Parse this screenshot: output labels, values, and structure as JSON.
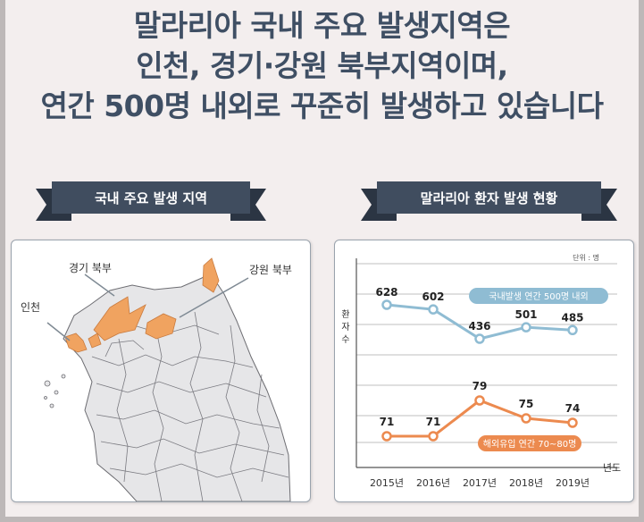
{
  "headline": {
    "line1": "말라리아 국내 주요 발생지역은",
    "line2": "인천, 경기·강원 북부지역이며,",
    "line3": "연간 500명 내외로 꾸준히 발생하고 있습니다"
  },
  "left_panel": {
    "ribbon_title": "국내 주요 발생 지역",
    "labels": {
      "gyeonggi": "경기 북부",
      "gangwon": "강원 북부",
      "incheon": "인천"
    }
  },
  "right_panel": {
    "ribbon_title": "말라리아 환자 발생 현황",
    "unit_note": "단위 : 명",
    "y_label": "환자수",
    "x_axis_label": "년도"
  },
  "colors": {
    "domestic": "#8fbcd3",
    "overseas": "#ec8a4f",
    "highlight_region": "#f0a360"
  },
  "chart_data": {
    "type": "line",
    "categories": [
      "2015년",
      "2016년",
      "2017년",
      "2018년",
      "2019년"
    ],
    "series": [
      {
        "name": "국내발생 연간 500명 내외",
        "values": [
          628,
          602,
          436,
          501,
          485
        ]
      },
      {
        "name": "해외유입 연간 70~80명",
        "values": [
          71,
          71,
          79,
          75,
          74
        ]
      }
    ]
  }
}
